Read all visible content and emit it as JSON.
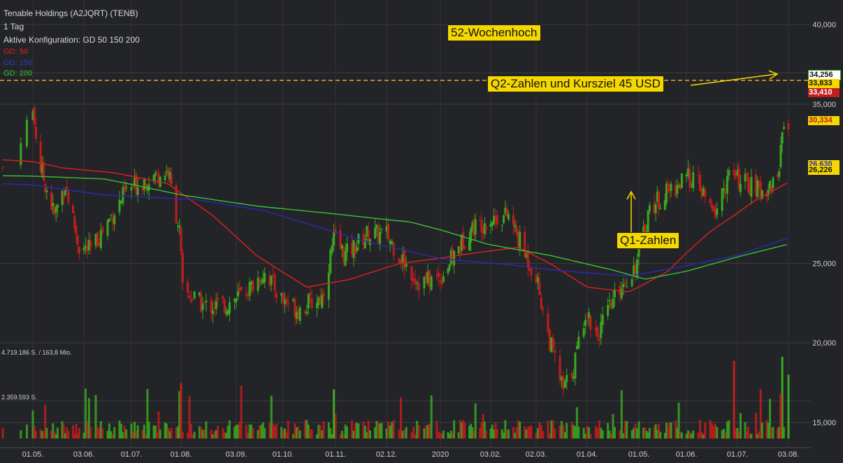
{
  "header": {
    "title": "Tenable Holdings (A2JQRT) (TENB)",
    "interval": "1 Tag",
    "config": "Aktive Konfiguration: GD 50 150 200"
  },
  "ma_labels": {
    "gd50": "GD: 50",
    "gd150": "GD: 150",
    "gd200": "GD: 200"
  },
  "volume_labels": {
    "max": "4.719.186 S. / 163,8 Mio.",
    "mid": "2.359.593 S."
  },
  "annotations": {
    "high52": "52-Wochenhoch",
    "q2": "Q2-Zahlen und Kursziel 45 USD",
    "q1": "Q1-Zahlen"
  },
  "price_tags": {
    "t1": "34,256",
    "t2": "33,833",
    "t3": "33,410",
    "t4": "30,334",
    "t5": "26,630",
    "t6": "26,226"
  },
  "colors": {
    "background": "#232427",
    "up": "#3aa820",
    "down": "#c21d1d",
    "gd50": "#e02020",
    "gd150": "#2a2ab8",
    "gd200": "#38c238",
    "high_line": "#f0a030",
    "annotation": "#f5d800"
  },
  "chart_data": {
    "type": "candlestick",
    "y_axis": {
      "ticks": [
        "40,000",
        "35,000",
        "25,000",
        "20,000",
        "15,000"
      ],
      "range": [
        14.8,
        40.5
      ]
    },
    "x_axis": {
      "ticks": [
        "01.05.",
        "03.06.",
        "01.07.",
        "01.08.",
        "03.09.",
        "01.10.",
        "01.11.",
        "02.12.",
        "2020",
        "03.02.",
        "02.03.",
        "01.04.",
        "01.05.",
        "01.06.",
        "01.07.",
        "03.08."
      ]
    },
    "high_52w": 36.5,
    "close_path": [
      {
        "date": "2019-04-26",
        "close": 31.0
      },
      {
        "date": "2019-05-01",
        "close": 34.5
      },
      {
        "date": "2019-05-06",
        "close": 31.0
      },
      {
        "date": "2019-05-15",
        "close": 28.0
      },
      {
        "date": "2019-05-22",
        "close": 30.0
      },
      {
        "date": "2019-05-31",
        "close": 26.0
      },
      {
        "date": "2019-06-07",
        "close": 25.8
      },
      {
        "date": "2019-06-18",
        "close": 27.8
      },
      {
        "date": "2019-06-28",
        "close": 29.5
      },
      {
        "date": "2019-07-10",
        "close": 30.3
      },
      {
        "date": "2019-07-24",
        "close": 30.8
      },
      {
        "date": "2019-07-31",
        "close": 27.0
      },
      {
        "date": "2019-08-02",
        "close": 23.3
      },
      {
        "date": "2019-08-15",
        "close": 22.3
      },
      {
        "date": "2019-08-28",
        "close": 22.4
      },
      {
        "date": "2019-09-10",
        "close": 23.3
      },
      {
        "date": "2019-09-20",
        "close": 24.5
      },
      {
        "date": "2019-09-30",
        "close": 22.8
      },
      {
        "date": "2019-10-10",
        "close": 22.1
      },
      {
        "date": "2019-10-24",
        "close": 22.9
      },
      {
        "date": "2019-10-31",
        "close": 26.5
      },
      {
        "date": "2019-11-07",
        "close": 25.5
      },
      {
        "date": "2019-11-20",
        "close": 26.8
      },
      {
        "date": "2019-12-02",
        "close": 26.8
      },
      {
        "date": "2019-12-11",
        "close": 25.2
      },
      {
        "date": "2019-12-20",
        "close": 23.8
      },
      {
        "date": "2020-01-01",
        "close": 24.1
      },
      {
        "date": "2020-01-10",
        "close": 25.5
      },
      {
        "date": "2020-01-21",
        "close": 27.2
      },
      {
        "date": "2020-02-03",
        "close": 27.8
      },
      {
        "date": "2020-02-14",
        "close": 28.0
      },
      {
        "date": "2020-02-24",
        "close": 25.6
      },
      {
        "date": "2020-03-02",
        "close": 24.2
      },
      {
        "date": "2020-03-09",
        "close": 20.5
      },
      {
        "date": "2020-03-18",
        "close": 17.0
      },
      {
        "date": "2020-03-24",
        "close": 18.5
      },
      {
        "date": "2020-03-31",
        "close": 22.0
      },
      {
        "date": "2020-04-07",
        "close": 20.5
      },
      {
        "date": "2020-04-20",
        "close": 23.5
      },
      {
        "date": "2020-04-30",
        "close": 25.0
      },
      {
        "date": "2020-05-08",
        "close": 28.5
      },
      {
        "date": "2020-05-20",
        "close": 29.5
      },
      {
        "date": "2020-05-28",
        "close": 30.0
      },
      {
        "date": "2020-06-05",
        "close": 30.5
      },
      {
        "date": "2020-06-17",
        "close": 28.0
      },
      {
        "date": "2020-06-26",
        "close": 30.5
      },
      {
        "date": "2020-07-07",
        "close": 30.0
      },
      {
        "date": "2020-07-17",
        "close": 29.5
      },
      {
        "date": "2020-07-27",
        "close": 30.3
      },
      {
        "date": "2020-07-31",
        "close": 34.2
      },
      {
        "date": "2020-08-03",
        "close": 33.4
      }
    ],
    "series": [
      {
        "name": "GD: 50",
        "points": [
          {
            "date": "2019-04-26",
            "value": 31.5
          },
          {
            "date": "2019-05-20",
            "value": 31.0
          },
          {
            "date": "2019-06-20",
            "value": 30.7
          },
          {
            "date": "2019-07-24",
            "value": 30.0
          },
          {
            "date": "2019-08-20",
            "value": 28.0
          },
          {
            "date": "2019-09-15",
            "value": 25.5
          },
          {
            "date": "2019-10-15",
            "value": 23.5
          },
          {
            "date": "2019-11-10",
            "value": 24.0
          },
          {
            "date": "2019-12-10",
            "value": 25.0
          },
          {
            "date": "2020-01-20",
            "value": 25.6
          },
          {
            "date": "2020-02-20",
            "value": 26.0
          },
          {
            "date": "2020-03-10",
            "value": 25.0
          },
          {
            "date": "2020-04-01",
            "value": 23.5
          },
          {
            "date": "2020-04-25",
            "value": 23.2
          },
          {
            "date": "2020-05-20",
            "value": 24.5
          },
          {
            "date": "2020-06-15",
            "value": 27.0
          },
          {
            "date": "2020-07-10",
            "value": 28.8
          },
          {
            "date": "2020-08-03",
            "value": 30.1
          }
        ]
      },
      {
        "name": "GD: 150",
        "points": [
          {
            "date": "2019-04-26",
            "value": 30.0
          },
          {
            "date": "2019-06-15",
            "value": 29.3
          },
          {
            "date": "2019-08-10",
            "value": 29.0
          },
          {
            "date": "2019-09-20",
            "value": 28.3
          },
          {
            "date": "2019-11-15",
            "value": 26.5
          },
          {
            "date": "2020-01-01",
            "value": 25.3
          },
          {
            "date": "2020-02-15",
            "value": 24.9
          },
          {
            "date": "2020-03-20",
            "value": 24.5
          },
          {
            "date": "2020-04-25",
            "value": 24.2
          },
          {
            "date": "2020-05-30",
            "value": 24.8
          },
          {
            "date": "2020-07-01",
            "value": 25.5
          },
          {
            "date": "2020-08-03",
            "value": 26.6
          }
        ]
      },
      {
        "name": "GD: 200",
        "points": [
          {
            "date": "2019-04-26",
            "value": 30.5
          },
          {
            "date": "2019-06-15",
            "value": 30.3
          },
          {
            "date": "2019-08-01",
            "value": 29.3
          },
          {
            "date": "2019-09-15",
            "value": 28.6
          },
          {
            "date": "2019-11-01",
            "value": 28.1
          },
          {
            "date": "2019-12-15",
            "value": 27.6
          },
          {
            "date": "2020-02-01",
            "value": 26.2
          },
          {
            "date": "2020-03-10",
            "value": 25.5
          },
          {
            "date": "2020-04-15",
            "value": 24.6
          },
          {
            "date": "2020-05-05",
            "value": 24.0
          },
          {
            "date": "2020-06-01",
            "value": 24.5
          },
          {
            "date": "2020-07-01",
            "value": 25.4
          },
          {
            "date": "2020-08-03",
            "value": 26.2
          }
        ]
      }
    ]
  }
}
